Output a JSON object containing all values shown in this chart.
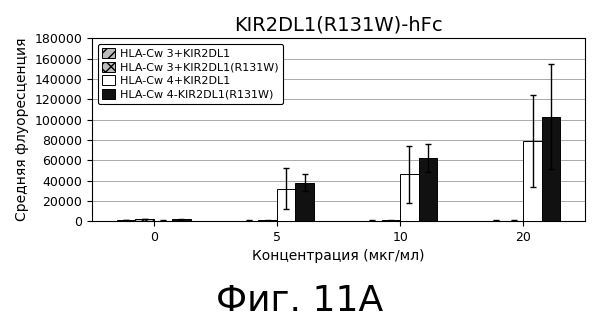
{
  "title": "KIR2DL1(R131W)-hFc",
  "xlabel": "Концентрация (мкг/мл)",
  "ylabel": "Средняя флуоресценция",
  "caption": "Фиг. 11A",
  "concentrations": [
    0,
    5,
    10,
    20
  ],
  "series": [
    {
      "label": "HLA-Cw 3+KIR2DL1",
      "values": [
        1200,
        500,
        600,
        500
      ],
      "errors": [
        300,
        200,
        200,
        200
      ],
      "color": "#bbbbbb",
      "hatch": "///",
      "edgecolor": "#000000"
    },
    {
      "label": "HLA-Cw 3+KIR2DL1(R131W)",
      "values": [
        2000,
        800,
        700,
        600
      ],
      "errors": [
        300,
        300,
        200,
        200
      ],
      "color": "#bbbbbb",
      "hatch": "xxx",
      "edgecolor": "#000000"
    },
    {
      "label": "HLA-Cw 4+KIR2DL1",
      "values": [
        500,
        32000,
        46000,
        79000
      ],
      "errors": [
        200,
        20000,
        28000,
        45000
      ],
      "color": "#ffffff",
      "hatch": "",
      "edgecolor": "#000000"
    },
    {
      "label": "HLA-Cw 4-KIR2DL1(R131W)",
      "values": [
        2000,
        38000,
        62000,
        103000
      ],
      "errors": [
        500,
        8000,
        14000,
        52000
      ],
      "color": "#111111",
      "hatch": "",
      "edgecolor": "#000000"
    }
  ],
  "ylim": [
    0,
    180000
  ],
  "yticks": [
    0,
    20000,
    40000,
    60000,
    80000,
    100000,
    120000,
    140000,
    160000,
    180000
  ],
  "bar_width": 0.15,
  "background_color": "#ffffff",
  "title_fontsize": 14,
  "axis_fontsize": 10,
  "tick_fontsize": 9,
  "legend_fontsize": 8,
  "caption_fontsize": 26
}
